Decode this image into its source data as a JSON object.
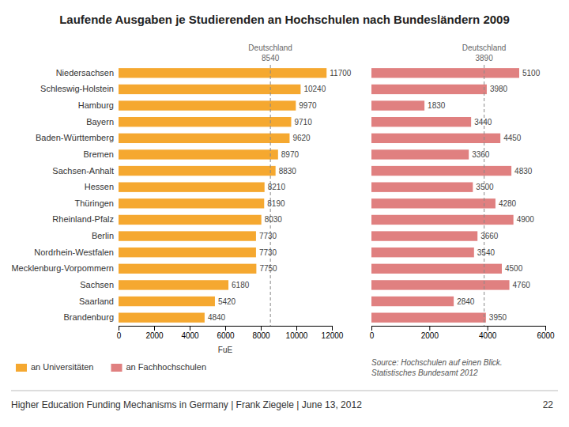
{
  "chart_data": [
    {
      "type": "bar",
      "title": "Laufende Ausgaben je Studierenden an Hochschulen nach Bundesländern 2009",
      "orientation": "horizontal",
      "categories": [
        "Niedersachsen",
        "Schleswig-Holstein",
        "Hamburg",
        "Bayern",
        "Baden-Württemberg",
        "Bremen",
        "Sachsen-Anhalt",
        "Hessen",
        "Thüringen",
        "Rheinland-Pfalz",
        "Berlin",
        "Nordrhein-Westfalen",
        "Mecklenburg-Vorpommern",
        "Sachsen",
        "Saarland",
        "Brandenburg"
      ],
      "series": [
        {
          "name": "an Universitäten",
          "color": "#F5A830",
          "values": [
            11700,
            10240,
            9970,
            9710,
            9620,
            8970,
            8830,
            8210,
            8190,
            8030,
            7730,
            7730,
            7750,
            6180,
            5420,
            4840
          ],
          "reference": {
            "label": "Deutschland",
            "value": 8540
          }
        }
      ],
      "xlim": [
        0,
        12000
      ],
      "xticks": [
        0,
        2000,
        4000,
        6000,
        8000,
        10000,
        12000
      ],
      "x_label": "FuE",
      "data_labels": true,
      "grid": false,
      "legend": "bottom",
      "annotations": [
        "Source: Hochschulen auf einen Blick.\nStatistisches Bundesamt 2012",
        "Higher Education Funding Mechanisms in Germany | Frank Ziegele | June 13, 2012",
        "22"
      ]
    },
    {
      "type": "bar",
      "orientation": "horizontal",
      "categories": [
        "Niedersachsen",
        "Schleswig-Holstein",
        "Hamburg",
        "Bayern",
        "Baden-Württemberg",
        "Bremen",
        "Sachsen-Anhalt",
        "Hessen",
        "Thüringen",
        "Rheinland-Pfalz",
        "Berlin",
        "Nordrhein-Westfalen",
        "Mecklenburg-Vorpommern",
        "Sachsen",
        "Saarland",
        "Brandenburg"
      ],
      "series": [
        {
          "name": "an Fachhochschulen",
          "color": "#E08080",
          "values": [
            5100,
            3980,
            1830,
            3440,
            4450,
            3360,
            4830,
            3500,
            4280,
            4900,
            3660,
            3540,
            4500,
            4760,
            2840,
            3950
          ],
          "reference": {
            "label": "Deutschland",
            "value": 3890
          }
        }
      ],
      "xlim": [
        0,
        6000
      ],
      "xticks": [
        0,
        2000,
        4000,
        6000
      ],
      "data_labels": true,
      "grid": false,
      "tick_labels": "x"
    }
  ]
}
